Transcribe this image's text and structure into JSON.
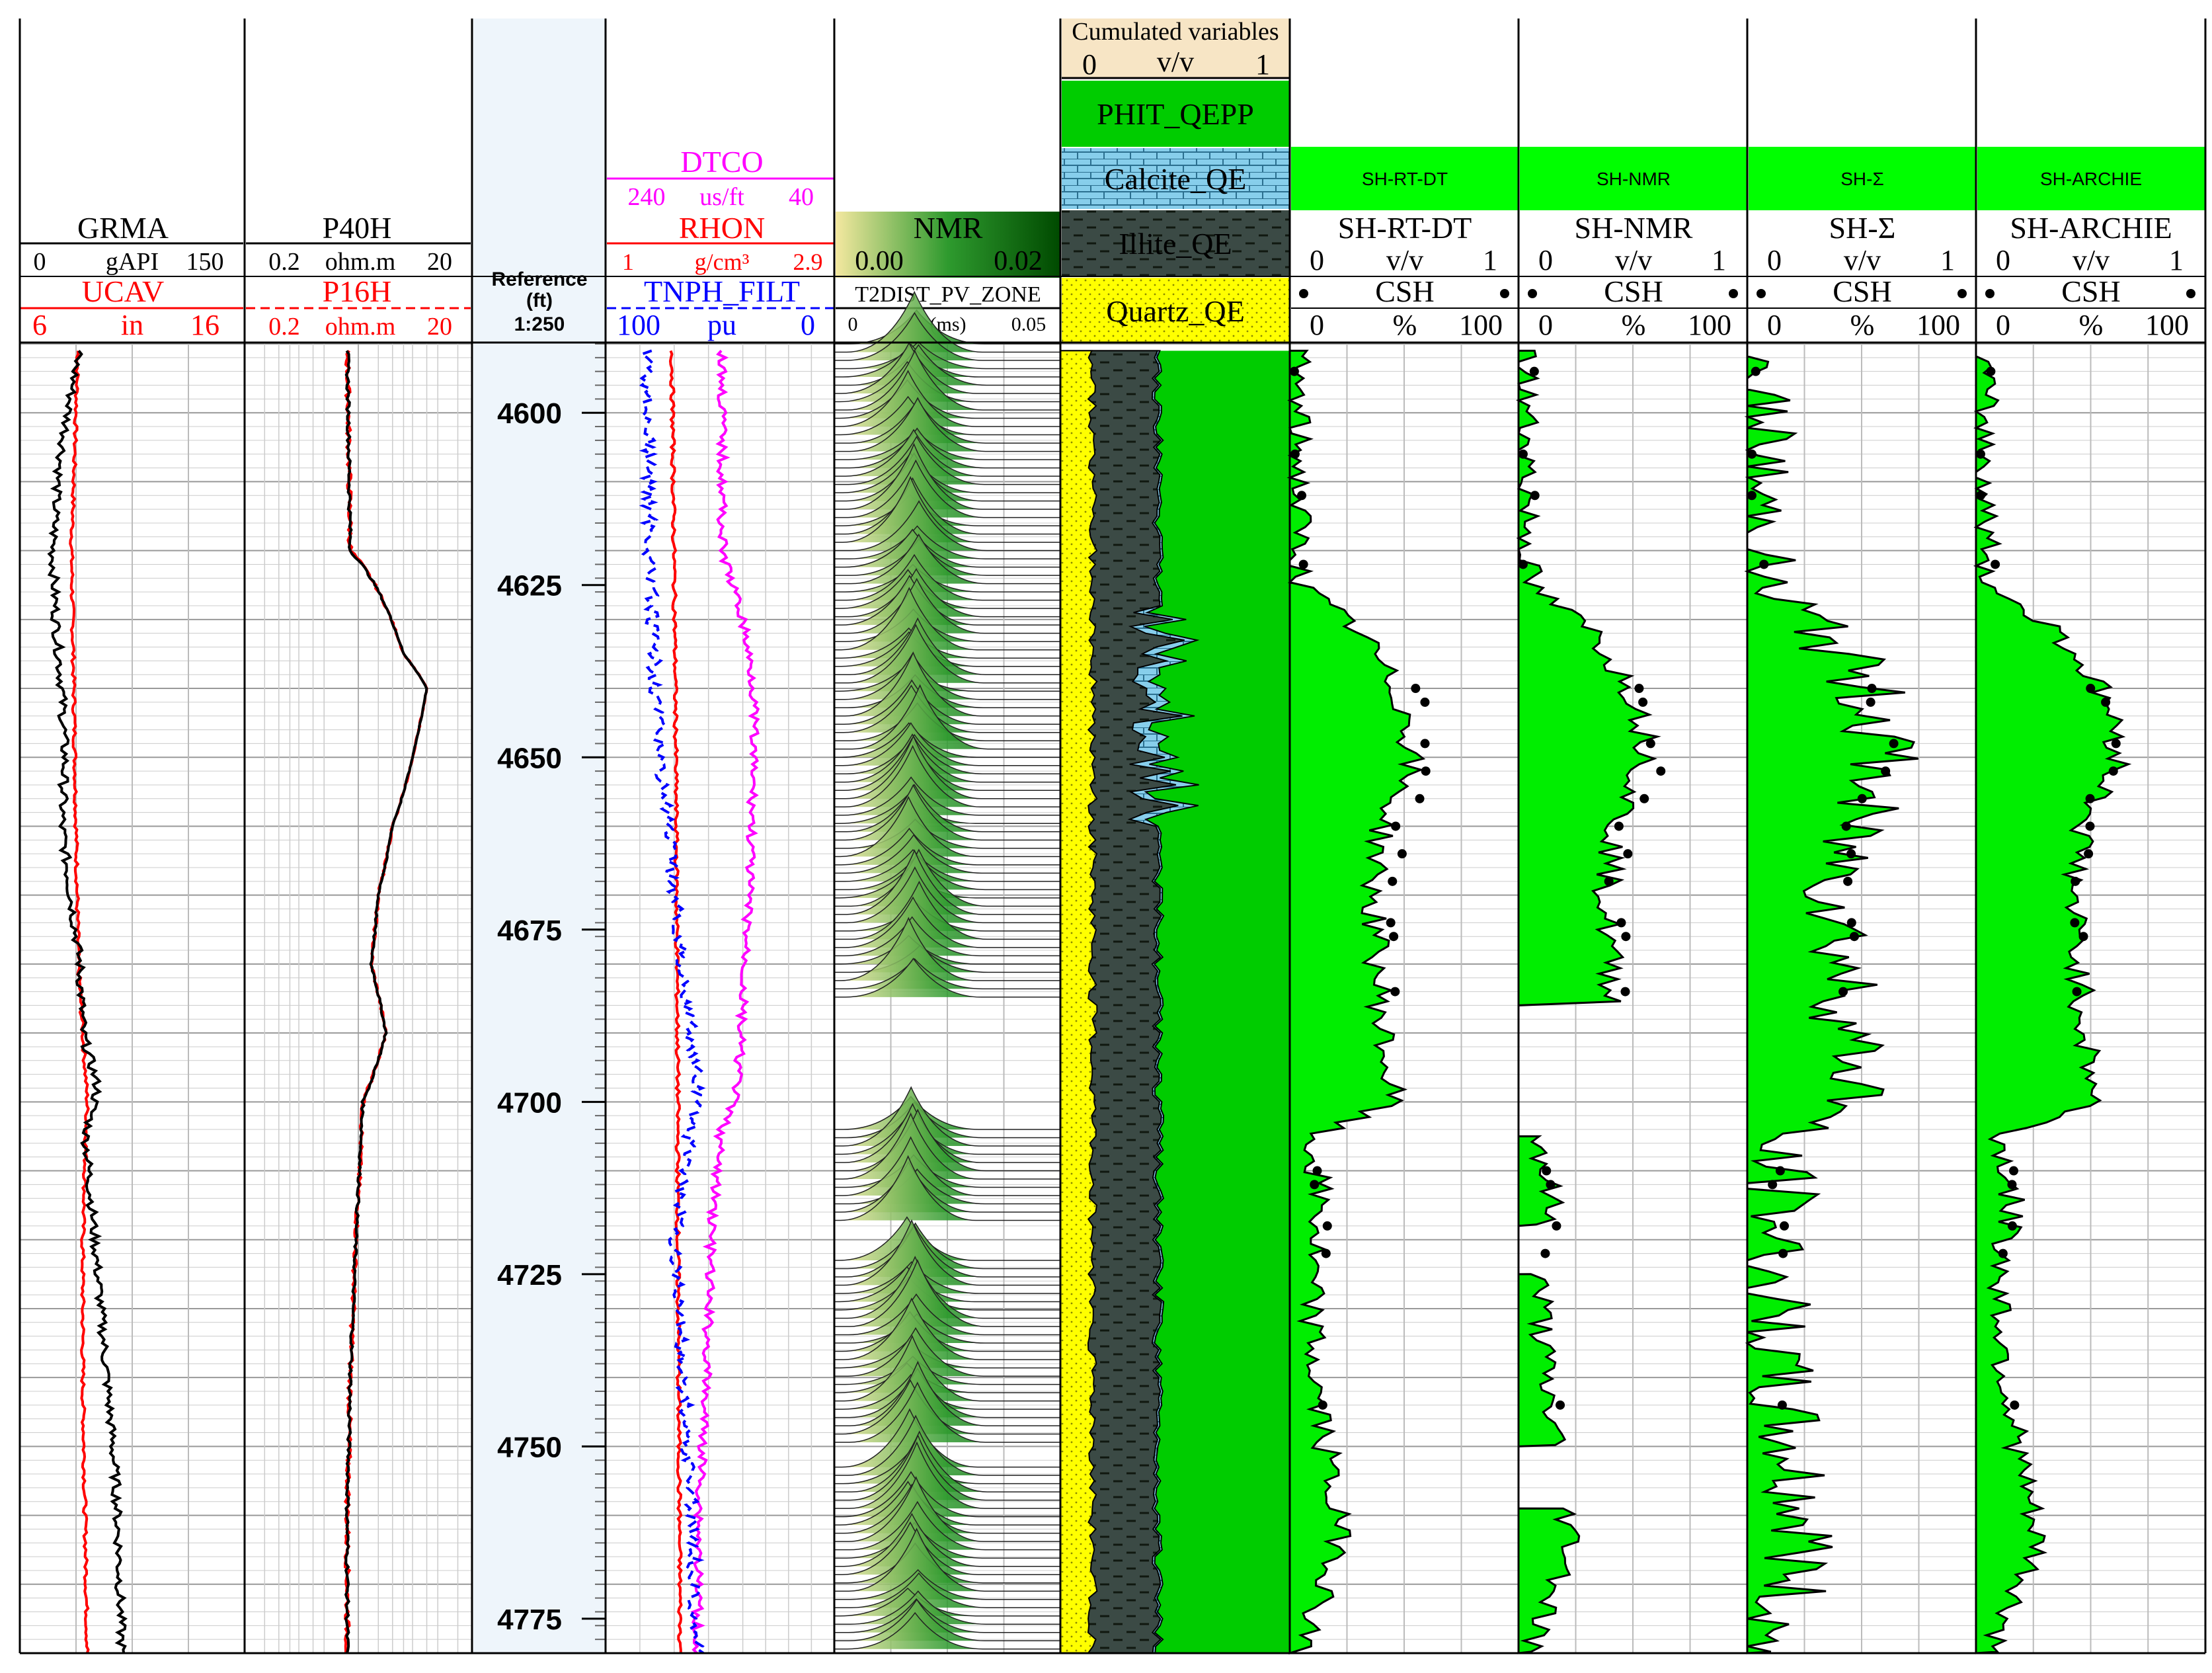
{
  "colors": {
    "green": "#00dd00",
    "dark": "#3b4a45",
    "yellow": "#ffff00",
    "calcite": "#87ceeb",
    "nmr_light": "#f4e8a0",
    "nmr_dark": "#005000",
    "header_beige": "#f7e5c5",
    "red": "#ff0000",
    "magenta": "#ff00ff",
    "blue": "#0000ff",
    "depth_panel": "#eef5fb"
  },
  "tracks": {
    "t1": {
      "name": "GRMA",
      "scale_left": "0",
      "unit": "gAPI",
      "scale_right": "150",
      "name2": "UCAV",
      "scale2_left": "6",
      "unit2": "in",
      "scale2_right": "16"
    },
    "t2": {
      "name": "P40H",
      "scale_left": "0.2",
      "unit": "ohm.m",
      "scale_right": "20",
      "name2": "P16H",
      "scale2_left": "0.2",
      "unit2": "ohm.m",
      "scale2_right": "20"
    },
    "t3": {
      "label_line1": "Reference",
      "label_line2": "(ft)",
      "scale": "1:250"
    },
    "t4": {
      "name1": "DTCO",
      "scale1_left": "240",
      "unit1": "us/ft",
      "scale1_right": "40",
      "name2": "RHON",
      "scale2_left": "1",
      "unit2": "g/cm³",
      "scale2_right": "2.9",
      "name3": "TNPH_FILT",
      "scale3_left": "100",
      "unit3": "pu",
      "scale3_right": "0"
    },
    "t5": {
      "name": "NMR",
      "scale_left": "0.00",
      "scale_right": "0.02",
      "subtitle": "T2DIST_PV_ZONE",
      "axis_left": "0",
      "unit": "(ms)",
      "axis_right": "0.05"
    },
    "t6": {
      "title": "Cumulated variables",
      "scale_left": "0",
      "unit": "v/v",
      "scale_right": "1",
      "legend": [
        "PHIT_QEPP",
        "Calcite_QE",
        "Illite_QE",
        "Quartz_QE"
      ]
    },
    "sh": [
      {
        "band": "SH-RT-DT",
        "name": "SH-RT-DT",
        "scale_left": "0",
        "unit": "v/v",
        "scale_right": "1",
        "csh": "CSH",
        "pct_left": "0",
        "pct_unit": "%",
        "pct_right": "100"
      },
      {
        "band": "SH-NMR",
        "name": "SH-NMR",
        "scale_left": "0",
        "unit": "v/v",
        "scale_right": "1",
        "csh": "CSH",
        "pct_left": "0",
        "pct_unit": "%",
        "pct_right": "100"
      },
      {
        "band": "SH-Σ",
        "name": "SH-Σ",
        "scale_left": "0",
        "unit": "v/v",
        "scale_right": "1",
        "csh": "CSH",
        "pct_left": "0",
        "pct_unit": "%",
        "pct_right": "100"
      },
      {
        "band": "SH-ARCHIE",
        "name": "SH-ARCHIE",
        "scale_left": "0",
        "unit": "v/v",
        "scale_right": "1",
        "csh": "CSH",
        "pct_left": "0",
        "pct_unit": "%",
        "pct_right": "100"
      }
    ]
  },
  "chart_data": {
    "type": "well-log",
    "depth_unit": "ft",
    "depth_range": [
      4590,
      4780
    ],
    "depth_ticks": [
      "4600",
      "4625",
      "4650",
      "4675",
      "4700",
      "4725",
      "4750",
      "4775"
    ],
    "curves": {
      "GRMA": [
        [
          4590,
          40
        ],
        [
          4600,
          32
        ],
        [
          4610,
          25
        ],
        [
          4620,
          22
        ],
        [
          4630,
          24
        ],
        [
          4640,
          28
        ],
        [
          4650,
          30
        ],
        [
          4660,
          28
        ],
        [
          4670,
          34
        ],
        [
          4680,
          40
        ],
        [
          4690,
          42
        ],
        [
          4698,
          52
        ],
        [
          4705,
          44
        ],
        [
          4715,
          48
        ],
        [
          4725,
          52
        ],
        [
          4735,
          56
        ],
        [
          4745,
          60
        ],
        [
          4755,
          64
        ],
        [
          4765,
          66
        ],
        [
          4780,
          68
        ]
      ],
      "UCAV": [
        [
          4590,
          8.6
        ],
        [
          4600,
          8.5
        ],
        [
          4620,
          8.3
        ],
        [
          4640,
          8.4
        ],
        [
          4660,
          8.5
        ],
        [
          4680,
          8.6
        ],
        [
          4700,
          9.0
        ],
        [
          4720,
          8.8
        ],
        [
          4740,
          8.8
        ],
        [
          4760,
          8.9
        ],
        [
          4780,
          9.0
        ]
      ],
      "P40H": [
        [
          4590,
          1.6
        ],
        [
          4620,
          1.7
        ],
        [
          4635,
          5
        ],
        [
          4640,
          8
        ],
        [
          4650,
          6
        ],
        [
          4660,
          4
        ],
        [
          4670,
          3
        ],
        [
          4680,
          2.6
        ],
        [
          4690,
          3.5
        ],
        [
          4700,
          2.2
        ],
        [
          4720,
          1.9
        ],
        [
          4740,
          1.7
        ],
        [
          4760,
          1.6
        ],
        [
          4780,
          1.6
        ]
      ],
      "DTCO": [
        [
          4590,
          138
        ],
        [
          4620,
          138
        ],
        [
          4630,
          120
        ],
        [
          4640,
          110
        ],
        [
          4660,
          112
        ],
        [
          4680,
          118
        ],
        [
          4698,
          125
        ],
        [
          4705,
          140
        ],
        [
          4720,
          148
        ],
        [
          4740,
          152
        ],
        [
          4760,
          158
        ],
        [
          4780,
          160
        ]
      ],
      "RHON": [
        [
          4590,
          1.55
        ],
        [
          4640,
          1.58
        ],
        [
          4698,
          1.6
        ],
        [
          4720,
          1.6
        ],
        [
          4780,
          1.62
        ]
      ],
      "TNPH_FILT": [
        [
          4590,
          82
        ],
        [
          4630,
          80
        ],
        [
          4650,
          76
        ],
        [
          4670,
          70
        ],
        [
          4698,
          60
        ],
        [
          4720,
          70
        ],
        [
          4740,
          66
        ],
        [
          4760,
          62
        ],
        [
          4780,
          60
        ]
      ]
    }
  }
}
